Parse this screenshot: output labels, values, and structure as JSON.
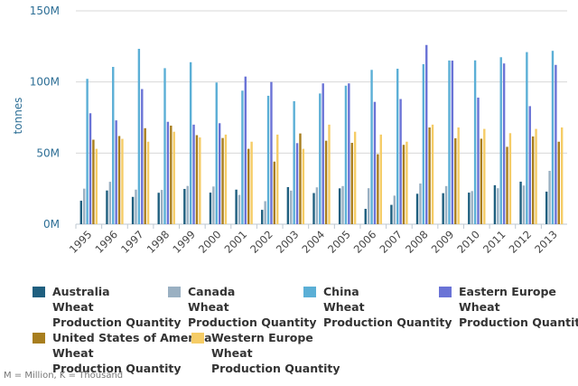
{
  "chart_data": {
    "type": "bar",
    "ylabel": "tonnes",
    "ylim": [
      0,
      150000000
    ],
    "yticks": [
      {
        "value": 0,
        "label": "0M"
      },
      {
        "value": 50000000,
        "label": "50M"
      },
      {
        "value": 100000000,
        "label": "100M"
      },
      {
        "value": 150000000,
        "label": "150M"
      }
    ],
    "categories": [
      "1995",
      "1996",
      "1997",
      "1998",
      "1999",
      "2000",
      "2001",
      "2002",
      "2003",
      "2004",
      "2005",
      "2006",
      "2007",
      "2008",
      "2009",
      "2010",
      "2011",
      "2012",
      "2013"
    ],
    "series": [
      {
        "name": "Australia\nWheat\nProduction Quantity",
        "color": "#1f5f7f",
        "values": [
          16.5,
          23.7,
          19.2,
          22.1,
          24.8,
          22.2,
          24.3,
          10.1,
          26.1,
          21.9,
          25.2,
          10.8,
          13.6,
          21.4,
          21.8,
          22.2,
          27.4,
          29.9,
          22.9
        ]
      },
      {
        "name": "Canada\nWheat\nProduction Quantity",
        "color": "#9ab0c2",
        "values": [
          25.0,
          29.8,
          24.3,
          24.1,
          26.9,
          26.5,
          20.6,
          16.2,
          23.6,
          25.9,
          26.8,
          25.3,
          20.1,
          28.6,
          26.8,
          23.3,
          25.3,
          27.2,
          37.5
        ]
      },
      {
        "name": "China\nWheat\nProduction Quantity",
        "color": "#5bafd6",
        "values": [
          102.2,
          110.6,
          123.3,
          109.7,
          113.9,
          99.6,
          93.9,
          90.3,
          86.5,
          91.9,
          97.4,
          108.5,
          109.3,
          112.5,
          115.1,
          115.2,
          117.4,
          121.0,
          121.9
        ]
      },
      {
        "name": "Eastern Europe\nWheat\nProduction Quantity",
        "color": "#6a73d6",
        "values": [
          78.0,
          73.0,
          95.0,
          72.0,
          70.0,
          71.0,
          103.8,
          100.0,
          57.0,
          99.0,
          99.0,
          86.0,
          88.0,
          126.0,
          115.0,
          89.0,
          113.0,
          83.0,
          112.0
        ]
      },
      {
        "name": "United States of America\nWheat\nProduction Quantity",
        "color": "#a87e1e",
        "values": [
          59.4,
          62.0,
          67.5,
          69.3,
          62.6,
          60.6,
          53.0,
          44.0,
          63.8,
          58.7,
          57.2,
          49.2,
          55.8,
          68.0,
          60.4,
          60.1,
          54.4,
          61.7,
          58.0
        ]
      },
      {
        "name": "Western Europe\nWheat\nProduction Quantity",
        "color": "#f5cc66",
        "values": [
          53.0,
          60.0,
          58.0,
          65.0,
          61.0,
          63.0,
          58.0,
          63.0,
          53.0,
          70.0,
          65.0,
          63.0,
          58.0,
          70.0,
          68.0,
          67.0,
          64.0,
          67.0,
          68.0
        ]
      }
    ],
    "value_unit_note": "series values in millions of tonnes",
    "grid": true,
    "legend_position": "bottom"
  },
  "footnote": "M = Million, K = Thousand"
}
